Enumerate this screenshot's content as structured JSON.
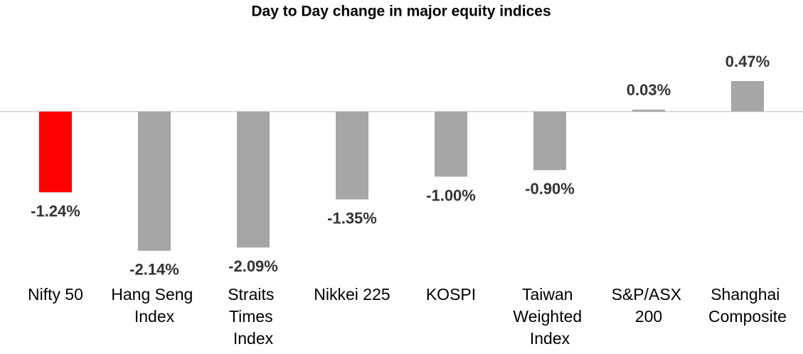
{
  "chart_data": {
    "type": "bar",
    "title": "Day to Day change in major equity indices",
    "categories": [
      "Nifty 50",
      "Hang Seng Index",
      "Straits Times Index",
      "Nikkei 225",
      "KOSPI",
      "Taiwan Weighted Index",
      "S&P/ASX 200",
      "Shanghai Composite"
    ],
    "values": [
      -1.24,
      -2.14,
      -2.09,
      -1.35,
      -1.0,
      -0.9,
      0.03,
      0.47
    ],
    "value_labels": [
      "-1.24%",
      "-2.14%",
      "-2.09%",
      "-1.35%",
      "-1.00%",
      "-0.90%",
      "0.03%",
      "0.47%"
    ],
    "colors": [
      "#ff0000",
      "#a6a6a6",
      "#a6a6a6",
      "#a6a6a6",
      "#a6a6a6",
      "#a6a6a6",
      "#a6a6a6",
      "#a6a6a6"
    ]
  }
}
